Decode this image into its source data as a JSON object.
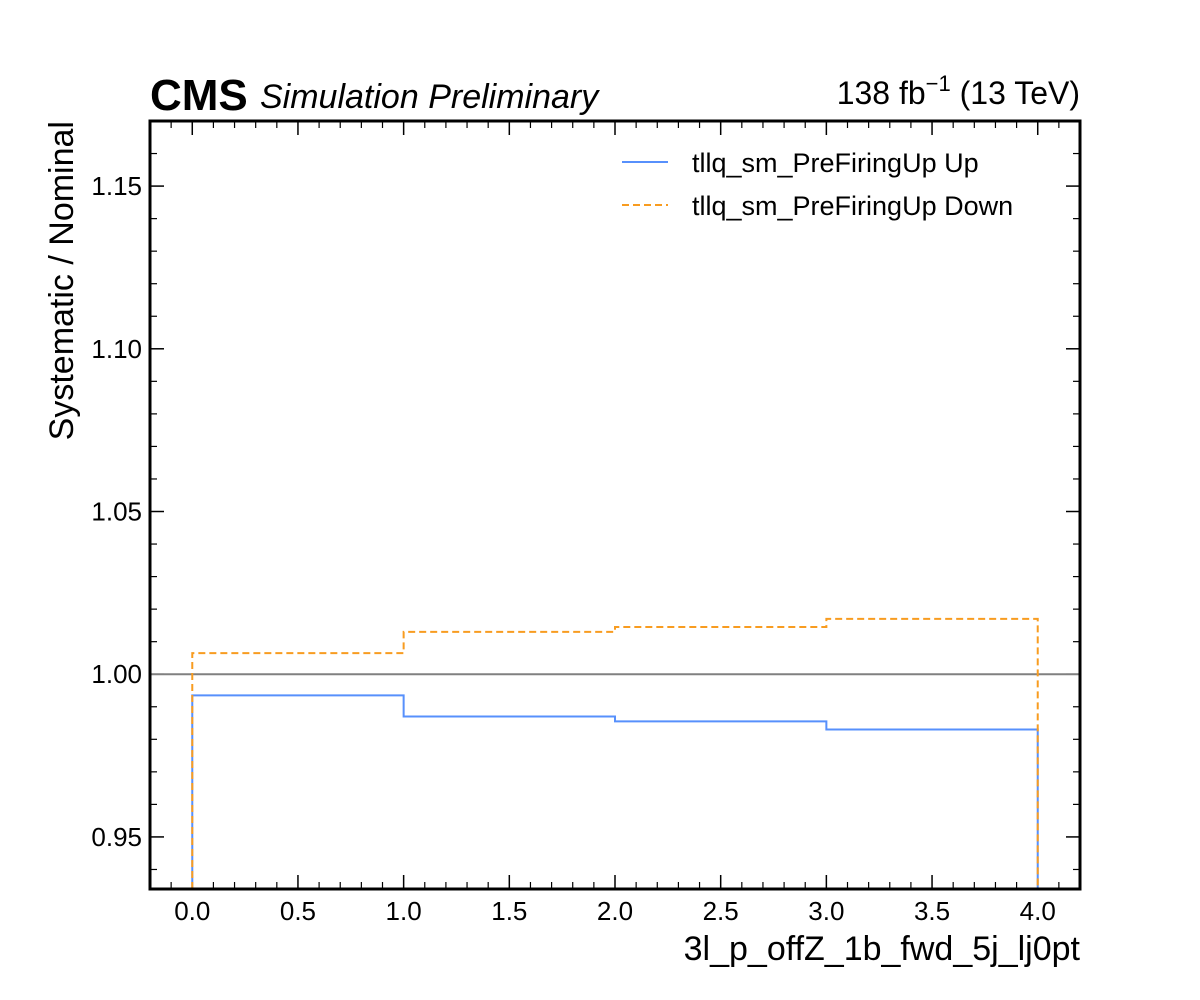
{
  "header": {
    "experiment": "CMS",
    "status": "Simulation Preliminary",
    "lumi_value": "138 fb",
    "lumi_exp": "−1",
    "lumi_energy": " (13 TeV)"
  },
  "chart_data": {
    "type": "line",
    "drawstyle": "steps",
    "xlabel": "3l_p_offZ_1b_fwd_5j_lj0pt",
    "ylabel": "Systematic / Nominal",
    "xlim": [
      -0.2,
      4.2
    ],
    "ylim": [
      0.934,
      1.17
    ],
    "x_ticks": [
      0.0,
      0.5,
      1.0,
      1.5,
      2.0,
      2.5,
      3.0,
      3.5,
      4.0
    ],
    "x_tick_labels": [
      "0.0",
      "0.5",
      "1.0",
      "1.5",
      "2.0",
      "2.5",
      "3.0",
      "3.5",
      "4.0"
    ],
    "y_ticks": [
      0.95,
      1.0,
      1.05,
      1.1,
      1.15
    ],
    "y_tick_labels": [
      "0.95",
      "1.00",
      "1.05",
      "1.10",
      "1.15"
    ],
    "bin_edges": [
      0,
      1,
      2,
      3,
      4
    ],
    "reference_line": 1.0,
    "reference_color": "#808080",
    "grid": false,
    "legend_position": "top-right",
    "series": [
      {
        "name": "tllq_sm_PreFiringUp Up",
        "values": [
          0.9935,
          0.987,
          0.9855,
          0.983
        ],
        "color": "#5790fc",
        "style": "solid"
      },
      {
        "name": "tllq_sm_PreFiringUp Down",
        "values": [
          1.0065,
          1.013,
          1.0145,
          1.017
        ],
        "color": "#f89c20",
        "style": "dashed"
      }
    ]
  }
}
